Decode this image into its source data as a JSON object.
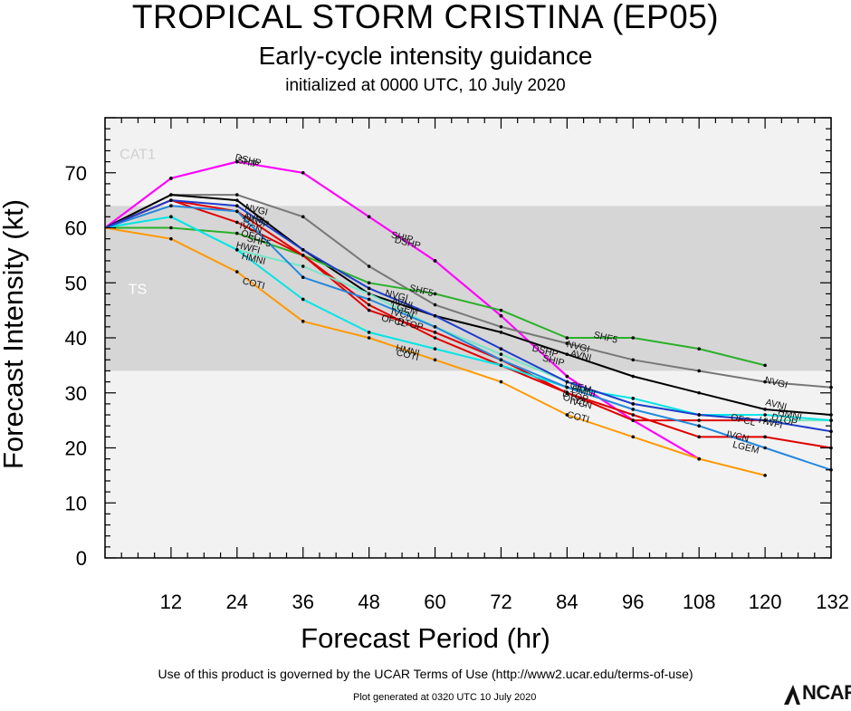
{
  "header": {
    "title": "TROPICAL STORM CRISTINA (EP05)",
    "subtitle": "Early-cycle intensity guidance",
    "init": "initialized at 0000 UTC, 10 July 2020"
  },
  "footer": {
    "terms": "Use of this product is governed by the UCAR Terms of Use (http://www2.ucar.edu/terms-of-use)",
    "generated": "Plot generated at 0320 UTC   10 July 2020",
    "logo": "NCAR"
  },
  "chart_data": {
    "type": "line",
    "title": "TROPICAL STORM CRISTINA (EP05)",
    "xlabel": "Forecast Period (hr)",
    "ylabel": "Forecast Intensity (kt)",
    "xlim": [
      0,
      132
    ],
    "ylim": [
      0,
      80
    ],
    "xticks": [
      12,
      24,
      36,
      48,
      60,
      72,
      84,
      96,
      108,
      120,
      132
    ],
    "yticks": [
      0,
      10,
      20,
      30,
      40,
      50,
      60,
      70
    ],
    "bands": [
      {
        "label": "TS",
        "from": 34,
        "to": 64,
        "color": "#d6d6d6"
      },
      {
        "label": "CAT1",
        "from": 64,
        "to": 80,
        "color": "#f2f2f2"
      }
    ],
    "below_band_color": "#f2f2f2",
    "series": [
      {
        "name": "DSHP",
        "color": "#ff00ff",
        "x": [
          0,
          12,
          24,
          36,
          48,
          60,
          72,
          84,
          96,
          108
        ],
        "y": [
          60,
          69,
          72,
          70,
          62,
          54,
          44,
          33,
          25,
          18
        ]
      },
      {
        "name": "SHIP",
        "color": "#ff00ff",
        "x": [
          0,
          12,
          24,
          36,
          48,
          60,
          72,
          84,
          96,
          108
        ],
        "y": [
          60,
          69,
          72,
          70,
          62,
          54,
          44,
          33,
          25,
          18
        ]
      },
      {
        "name": "NVGI",
        "color": "#777777",
        "x": [
          0,
          12,
          24,
          36,
          48,
          60,
          72,
          84,
          96,
          108,
          120,
          132
        ],
        "y": [
          60,
          66,
          66,
          62,
          53,
          46,
          42,
          39,
          36,
          34,
          32,
          31
        ]
      },
      {
        "name": "AVNI",
        "color": "#000000",
        "x": [
          0,
          12,
          24,
          36,
          48,
          60,
          72,
          84,
          96,
          108,
          120,
          132
        ],
        "y": [
          60,
          66,
          65,
          56,
          48,
          44,
          41,
          37,
          33,
          30,
          27,
          26
        ]
      },
      {
        "name": "SHF5",
        "color": "#2ab02a",
        "x": [
          0,
          12,
          24,
          36,
          48,
          60,
          72,
          84,
          96,
          108,
          120
        ],
        "y": [
          60,
          60,
          59,
          55,
          50,
          48,
          45,
          40,
          40,
          38,
          35
        ]
      },
      {
        "name": "IVCN",
        "color": "#e00000",
        "x": [
          0,
          12,
          24,
          36,
          48,
          60,
          72,
          84,
          96,
          108,
          120,
          132
        ],
        "y": [
          60,
          65,
          61,
          55,
          45,
          41,
          36,
          30,
          26,
          22,
          22,
          20
        ]
      },
      {
        "name": "OFCL",
        "color": "#e00000",
        "x": [
          0,
          12,
          24,
          36,
          48,
          60,
          72,
          84,
          96,
          108,
          120
        ],
        "y": [
          60,
          65,
          63,
          55,
          46,
          40,
          35,
          30,
          25,
          25,
          25
        ]
      },
      {
        "name": "HWFI",
        "color": "#73e6c8",
        "x": [
          0,
          12,
          24,
          36,
          48,
          60,
          72,
          84,
          96,
          108,
          120,
          132
        ],
        "y": [
          60,
          62,
          56,
          53,
          48,
          42,
          37,
          32,
          28,
          26,
          25,
          25
        ]
      },
      {
        "name": "HMNI",
        "color": "#00e5e5",
        "x": [
          0,
          12,
          24,
          36,
          48,
          60,
          72,
          84,
          96,
          108,
          120,
          132
        ],
        "y": [
          60,
          62,
          56,
          47,
          41,
          38,
          35,
          31,
          29,
          26,
          26,
          25
        ]
      },
      {
        "name": "LGEM",
        "color": "#2288dd",
        "x": [
          0,
          12,
          24,
          36,
          48,
          60,
          72,
          84,
          96,
          108,
          120,
          132
        ],
        "y": [
          60,
          64,
          63,
          51,
          47,
          42,
          36,
          31,
          27,
          24,
          20,
          16
        ]
      },
      {
        "name": "DTOP",
        "color": "#1e3ccc",
        "x": [
          0,
          12,
          24,
          36,
          48,
          60,
          72,
          84,
          96,
          108,
          120,
          132
        ],
        "y": [
          60,
          65,
          64,
          56,
          49,
          44,
          38,
          32,
          28,
          26,
          25,
          23
        ]
      },
      {
        "name": "COTI",
        "color": "#ff9900",
        "x": [
          0,
          12,
          24,
          36,
          48,
          60,
          72,
          84,
          96,
          108,
          120
        ],
        "y": [
          60,
          58,
          52,
          43,
          40,
          36,
          32,
          26,
          22,
          18,
          15
        ]
      }
    ],
    "labels": [
      {
        "text": "DSHP",
        "x": 26,
        "y": 72.2
      },
      {
        "text": "SHIP",
        "x": 26,
        "y": 71.8
      },
      {
        "text": "NVGI",
        "x": 27.5,
        "y": 63.2
      },
      {
        "text": "AVNI",
        "x": 27,
        "y": 61.6
      },
      {
        "text": "DTOP",
        "x": 27.5,
        "y": 61.0
      },
      {
        "text": "IVCN",
        "x": 26.5,
        "y": 59.9
      },
      {
        "text": "OFCL",
        "x": 27,
        "y": 58.4
      },
      {
        "text": "SHF5",
        "x": 28,
        "y": 57.5
      },
      {
        "text": "HWFI",
        "x": 26,
        "y": 56.3
      },
      {
        "text": "HMNI",
        "x": 27,
        "y": 54.3
      },
      {
        "text": "COTI",
        "x": 27,
        "y": 49.8
      },
      {
        "text": "SHIP",
        "x": 54,
        "y": 58.2
      },
      {
        "text": "DSHP",
        "x": 55,
        "y": 57.2
      },
      {
        "text": "SHF5",
        "x": 57.5,
        "y": 48.5
      },
      {
        "text": "NVGI",
        "x": 53,
        "y": 47.6
      },
      {
        "text": "AVNI",
        "x": 54,
        "y": 46.2
      },
      {
        "text": "LGEM",
        "x": 54.5,
        "y": 45.2
      },
      {
        "text": "IVCN",
        "x": 54,
        "y": 44.2
      },
      {
        "text": "OFCL",
        "x": 52.5,
        "y": 43.0
      },
      {
        "text": "DTOP",
        "x": 55.5,
        "y": 42.4
      },
      {
        "text": "HMNI",
        "x": 55,
        "y": 37.6
      },
      {
        "text": "COTI",
        "x": 55,
        "y": 36.8
      },
      {
        "text": "SHF5",
        "x": 91,
        "y": 40.0
      },
      {
        "text": "NVGI",
        "x": 86,
        "y": 38.3
      },
      {
        "text": "AVNI",
        "x": 86.5,
        "y": 36.7
      },
      {
        "text": "DSHP",
        "x": 80,
        "y": 37.5
      },
      {
        "text": "SHIP",
        "x": 81.5,
        "y": 35.8
      },
      {
        "text": "LGEM",
        "x": 86,
        "y": 31.0
      },
      {
        "text": "HMNI",
        "x": 87,
        "y": 30.2
      },
      {
        "text": "DTOP",
        "x": 85.5,
        "y": 29.3
      },
      {
        "text": "OFCL",
        "x": 85.5,
        "y": 28.6
      },
      {
        "text": "IVCN",
        "x": 86.5,
        "y": 28.0
      },
      {
        "text": "COTI",
        "x": 86,
        "y": 25.5
      },
      {
        "text": "NVGI",
        "x": 122,
        "y": 31.8
      },
      {
        "text": "AVNI",
        "x": 122,
        "y": 27.8
      },
      {
        "text": "HMNI",
        "x": 124.5,
        "y": 26.0
      },
      {
        "text": "DTOP",
        "x": 123.5,
        "y": 25.0
      },
      {
        "text": "OFCL",
        "x": 116,
        "y": 25.0
      },
      {
        "text": "HWFI",
        "x": 121,
        "y": 24.5
      },
      {
        "text": "IVCN",
        "x": 115,
        "y": 22.0
      },
      {
        "text": "LGEM",
        "x": 116.5,
        "y": 20.0
      }
    ]
  }
}
